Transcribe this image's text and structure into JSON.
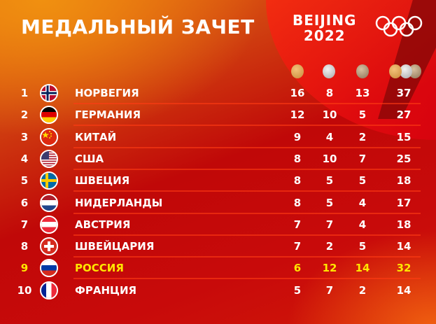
{
  "header": {
    "title": "МЕДАЛЬНЫЙ ЗАЧЕТ",
    "logo_line1": "BEIJING",
    "logo_line2": "2022"
  },
  "columns": [
    "gold-medal-icon",
    "silver-medal-icon",
    "bronze-medal-icon",
    "total-medals-icon"
  ],
  "colors": {
    "highlight": "#ffe600",
    "text": "#ffffff"
  },
  "rows": [
    {
      "rank": "1",
      "country": "НОРВЕГИЯ",
      "flag": "norway",
      "gold": "16",
      "silver": "8",
      "bronze": "13",
      "total": "37"
    },
    {
      "rank": "2",
      "country": "ГЕРМАНИЯ",
      "flag": "germany",
      "gold": "12",
      "silver": "10",
      "bronze": "5",
      "total": "27"
    },
    {
      "rank": "3",
      "country": "КИТАЙ",
      "flag": "china",
      "gold": "9",
      "silver": "4",
      "bronze": "2",
      "total": "15"
    },
    {
      "rank": "4",
      "country": "США",
      "flag": "usa",
      "gold": "8",
      "silver": "10",
      "bronze": "7",
      "total": "25"
    },
    {
      "rank": "5",
      "country": "ШВЕЦИЯ",
      "flag": "sweden",
      "gold": "8",
      "silver": "5",
      "bronze": "5",
      "total": "18"
    },
    {
      "rank": "6",
      "country": "НИДЕРЛАНДЫ",
      "flag": "netherlands",
      "gold": "8",
      "silver": "5",
      "bronze": "4",
      "total": "17"
    },
    {
      "rank": "7",
      "country": "АВСТРИЯ",
      "flag": "austria",
      "gold": "7",
      "silver": "7",
      "bronze": "4",
      "total": "18"
    },
    {
      "rank": "8",
      "country": "ШВЕЙЦАРИЯ",
      "flag": "switzerland",
      "gold": "7",
      "silver": "2",
      "bronze": "5",
      "total": "14"
    },
    {
      "rank": "9",
      "country": "РОССИЯ",
      "flag": "russia",
      "gold": "6",
      "silver": "12",
      "bronze": "14",
      "total": "32",
      "highlight": true
    },
    {
      "rank": "10",
      "country": "ФРАНЦИЯ",
      "flag": "france",
      "gold": "5",
      "silver": "7",
      "bronze": "2",
      "total": "14"
    }
  ]
}
